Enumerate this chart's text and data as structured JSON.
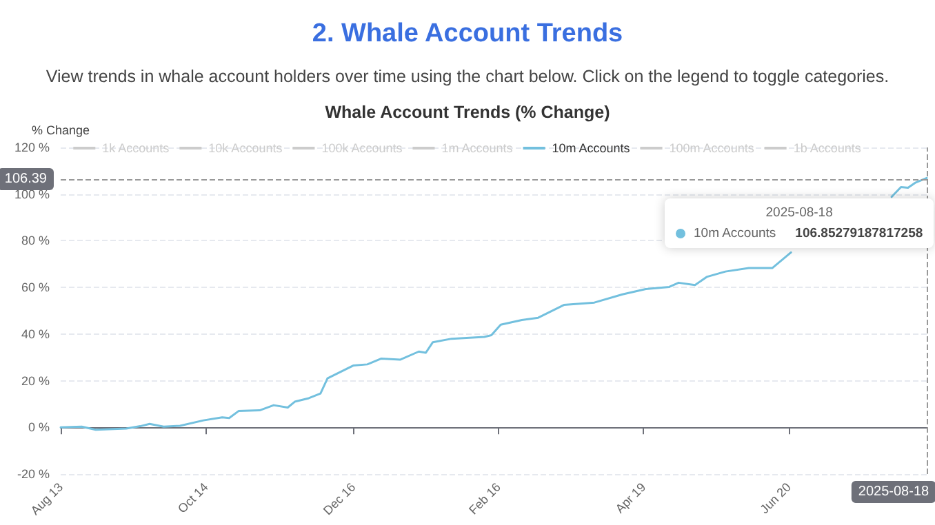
{
  "chart_data": {
    "type": "line",
    "title": "2. Whale Account Trends",
    "subtitle": "View trends in whale account holders over time using the chart below. Click on the legend to toggle categories.",
    "annotations": [
      "Whale Account Trends (% Change)",
      "2025-08-18",
      "106.85279187817258"
    ],
    "ylabel": "% Change",
    "x": [
      "2024-08-13",
      "2024-08-22",
      "2024-08-28",
      "2024-09-10",
      "2024-09-16",
      "2024-09-20",
      "2024-09-26",
      "2024-10-03",
      "2024-10-13",
      "2024-10-21",
      "2024-10-24",
      "2024-10-28",
      "2024-11-06",
      "2024-11-12",
      "2024-11-18",
      "2024-11-21",
      "2024-11-27",
      "2024-12-02",
      "2024-12-05",
      "2024-12-09",
      "2024-12-16",
      "2024-12-22",
      "2024-12-28",
      "2025-01-05",
      "2025-01-13",
      "2025-01-16",
      "2025-01-19",
      "2025-01-27",
      "2025-02-10",
      "2025-02-13",
      "2025-02-17",
      "2025-02-26",
      "2025-03-05",
      "2025-03-16",
      "2025-03-29",
      "2025-04-10",
      "2025-04-20",
      "2025-04-30",
      "2025-05-04",
      "2025-05-11",
      "2025-05-16",
      "2025-05-24",
      "2025-06-03",
      "2025-06-13",
      "2025-06-21",
      "2025-06-22",
      "2025-07-10",
      "2025-08-03",
      "2025-08-07",
      "2025-08-10",
      "2025-08-13",
      "2025-08-18"
    ],
    "series": [
      {
        "name": "1k Accounts",
        "values": [
          null,
          null,
          null,
          null,
          null,
          null,
          null,
          null,
          null,
          null,
          null,
          null,
          null,
          null,
          null,
          null,
          null,
          null,
          null,
          null,
          null,
          null,
          null,
          null,
          null,
          null,
          null,
          null,
          null,
          null,
          null,
          null,
          null,
          null,
          null,
          null,
          null,
          null,
          null,
          null,
          null,
          null,
          null,
          null,
          null,
          null,
          null,
          null,
          null,
          null,
          null,
          null
        ]
      },
      {
        "name": "10k Accounts",
        "values": [
          null,
          null,
          null,
          null,
          null,
          null,
          null,
          null,
          null,
          null,
          null,
          null,
          null,
          null,
          null,
          null,
          null,
          null,
          null,
          null,
          null,
          null,
          null,
          null,
          null,
          null,
          null,
          null,
          null,
          null,
          null,
          null,
          null,
          null,
          null,
          null,
          null,
          null,
          null,
          null,
          null,
          null,
          null,
          null,
          null,
          null,
          null,
          null,
          null,
          null,
          null,
          null
        ]
      },
      {
        "name": "100k Accounts",
        "values": [
          null,
          null,
          null,
          null,
          null,
          null,
          null,
          null,
          null,
          null,
          null,
          null,
          null,
          null,
          null,
          null,
          null,
          null,
          null,
          null,
          null,
          null,
          null,
          null,
          null,
          null,
          null,
          null,
          null,
          null,
          null,
          null,
          null,
          null,
          null,
          null,
          null,
          null,
          null,
          null,
          null,
          null,
          null,
          null,
          null,
          null,
          null,
          null,
          null,
          null,
          null,
          null
        ]
      },
      {
        "name": "1m Accounts",
        "values": [
          null,
          null,
          null,
          null,
          null,
          null,
          null,
          null,
          null,
          null,
          null,
          null,
          null,
          null,
          null,
          null,
          null,
          null,
          null,
          null,
          null,
          null,
          null,
          null,
          null,
          null,
          null,
          null,
          null,
          null,
          null,
          null,
          null,
          null,
          null,
          null,
          null,
          null,
          null,
          null,
          null,
          null,
          null,
          null,
          null,
          null,
          null,
          null,
          null,
          null,
          null,
          null
        ]
      },
      {
        "name": "10m Accounts",
        "color": "#73c0de",
        "values": [
          0,
          0.3,
          -1,
          -0.5,
          0.5,
          1.5,
          0.3,
          0.7,
          3,
          4.3,
          4,
          7,
          7.3,
          9.5,
          8.5,
          11,
          12.5,
          14.5,
          21,
          23,
          26.5,
          27,
          29.5,
          29,
          32.5,
          32,
          36.5,
          38,
          38.8,
          39.5,
          44,
          46,
          47,
          52.5,
          53.5,
          57,
          59.3,
          60.2,
          62,
          61,
          64.5,
          66.8,
          68.3,
          68.3,
          75,
          null,
          null,
          98.8,
          103,
          102.7,
          104.8,
          106.9
        ]
      },
      {
        "name": "100m Accounts",
        "values": [
          null,
          null,
          null,
          null,
          null,
          null,
          null,
          null,
          null,
          null,
          null,
          null,
          null,
          null,
          null,
          null,
          null,
          null,
          null,
          null,
          null,
          null,
          null,
          null,
          null,
          null,
          null,
          null,
          null,
          null,
          null,
          null,
          null,
          null,
          null,
          null,
          null,
          null,
          null,
          null,
          null,
          null,
          null,
          null,
          null,
          null,
          null,
          null,
          null,
          null,
          null,
          null
        ]
      },
      {
        "name": "1b Accounts",
        "values": [
          null,
          null,
          null,
          null,
          null,
          null,
          null,
          null,
          null,
          null,
          null,
          null,
          null,
          null,
          null,
          null,
          null,
          null,
          null,
          null,
          null,
          null,
          null,
          null,
          null,
          null,
          null,
          null,
          null,
          null,
          null,
          null,
          null,
          null,
          null,
          null,
          null,
          null,
          null,
          null,
          null,
          null,
          null,
          null,
          null,
          null,
          null,
          null,
          null,
          null,
          null,
          null
        ]
      }
    ],
    "xlim": [
      "2024-08-13",
      "2025-08-18"
    ],
    "xticks": [
      {
        "value": "2024-08-13",
        "label": "Aug 13"
      },
      {
        "value": "2024-10-14",
        "label": "Oct 14"
      },
      {
        "value": "2024-12-16",
        "label": "Dec 16"
      },
      {
        "value": "2025-02-16",
        "label": "Feb 16"
      },
      {
        "value": "2025-04-19",
        "label": "Apr 19"
      },
      {
        "value": "2025-06-20",
        "label": "Jun 20"
      }
    ],
    "ylim": [
      -20,
      120
    ],
    "yticks": [
      {
        "value": -20,
        "label": "-20 %"
      },
      {
        "value": 0,
        "label": "0 %"
      },
      {
        "value": 20,
        "label": "20 %"
      },
      {
        "value": 40,
        "label": "40 %"
      },
      {
        "value": 60,
        "label": "60 %"
      },
      {
        "value": 80,
        "label": "80 %"
      },
      {
        "value": 100,
        "label": "100 %"
      },
      {
        "value": 120,
        "label": "120 %"
      }
    ],
    "ref_lines": [
      {
        "axis": "y",
        "value": 106.39,
        "label": "106.39",
        "line_style": "dashed"
      },
      {
        "axis": "x",
        "value": "2025-08-18",
        "label": "2025-08-18",
        "line_style": "dashed"
      }
    ],
    "grid": "y",
    "legend": "top",
    "marker": "none",
    "line_style": "solid"
  }
}
